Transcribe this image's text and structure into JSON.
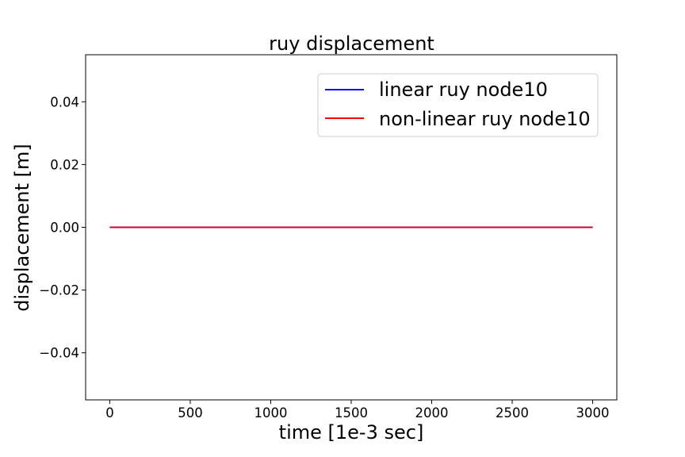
{
  "chart_data": {
    "type": "line",
    "title": "ruy displacement",
    "xlabel": "time [1e-3 sec]",
    "ylabel": "displacement [m]",
    "xlim": [
      -150,
      3150
    ],
    "ylim": [
      -0.055,
      0.055
    ],
    "xticks": [
      0,
      500,
      1000,
      1500,
      2000,
      2500,
      3000
    ],
    "xtick_labels": [
      "0",
      "500",
      "1000",
      "1500",
      "2000",
      "2500",
      "3000"
    ],
    "yticks": [
      -0.04,
      -0.02,
      0.0,
      0.02,
      0.04
    ],
    "ytick_labels": [
      "−0.04",
      "−0.02",
      "0.00",
      "0.02",
      "0.04"
    ],
    "grid": false,
    "legend_position": "top-right",
    "series": [
      {
        "name": "linear ruy node10",
        "color": "#0000ff",
        "x": [
          0,
          3000
        ],
        "y": [
          0.0,
          0.0
        ]
      },
      {
        "name": "non-linear ruy node10",
        "color": "#ff0000",
        "x": [
          0,
          3000
        ],
        "y": [
          0.0,
          0.0
        ]
      }
    ]
  }
}
